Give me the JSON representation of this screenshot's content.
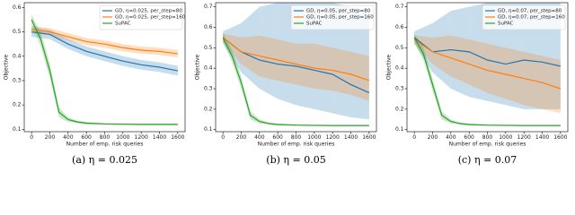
{
  "chart_data": [
    {
      "type": "line",
      "caption": "(a) η = 0.025",
      "xlabel": "Number of emp. risk queries",
      "ylabel": "Objective",
      "xlim": [
        -80,
        1680
      ],
      "xticks": [
        0,
        200,
        400,
        600,
        800,
        1000,
        1200,
        1400,
        1600
      ],
      "ylim": [
        0.09,
        0.62
      ],
      "yticks": [
        0.1,
        0.2,
        0.3,
        0.4,
        0.5,
        0.6
      ],
      "legend": "upper right",
      "series": [
        {
          "name": "GD, η=0.025, per_step=80",
          "color": "#1f77b4",
          "x": [
            0,
            200,
            400,
            600,
            800,
            1000,
            1200,
            1400,
            1600
          ],
          "values": [
            0.5,
            0.49,
            0.45,
            0.42,
            0.4,
            0.38,
            0.365,
            0.355,
            0.34
          ],
          "lower": [
            0.48,
            0.47,
            0.43,
            0.4,
            0.38,
            0.36,
            0.345,
            0.335,
            0.32
          ],
          "upper": [
            0.52,
            0.51,
            0.47,
            0.44,
            0.42,
            0.4,
            0.385,
            0.375,
            0.36
          ]
        },
        {
          "name": "GD, η=0.025, per_step=160",
          "color": "#ff7f0e",
          "x": [
            0,
            200,
            400,
            600,
            800,
            1000,
            1200,
            1400,
            1600
          ],
          "values": [
            0.51,
            0.5,
            0.48,
            0.46,
            0.45,
            0.435,
            0.425,
            0.42,
            0.41
          ],
          "lower": [
            0.495,
            0.485,
            0.465,
            0.445,
            0.435,
            0.42,
            0.41,
            0.405,
            0.395
          ],
          "upper": [
            0.525,
            0.515,
            0.495,
            0.475,
            0.465,
            0.45,
            0.44,
            0.435,
            0.425
          ]
        },
        {
          "name": "SuPAC",
          "color": "#2ca02c",
          "x": [
            0,
            100,
            200,
            300,
            400,
            500,
            600,
            800,
            1000,
            1200,
            1400,
            1600
          ],
          "values": [
            0.55,
            0.47,
            0.34,
            0.17,
            0.14,
            0.13,
            0.125,
            0.122,
            0.121,
            0.12,
            0.12,
            0.12
          ],
          "lower": [
            0.53,
            0.44,
            0.31,
            0.15,
            0.13,
            0.125,
            0.12,
            0.119,
            0.118,
            0.117,
            0.117,
            0.117
          ],
          "upper": [
            0.57,
            0.5,
            0.37,
            0.19,
            0.15,
            0.135,
            0.13,
            0.125,
            0.124,
            0.123,
            0.123,
            0.123
          ]
        }
      ]
    },
    {
      "type": "line",
      "caption": "(b) η = 0.05",
      "xlabel": "Number of emp. risk queries",
      "ylabel": "Objective",
      "xlim": [
        -80,
        1680
      ],
      "xticks": [
        0,
        200,
        400,
        600,
        800,
        1000,
        1200,
        1400,
        1600
      ],
      "ylim": [
        0.09,
        0.72
      ],
      "yticks": [
        0.1,
        0.2,
        0.3,
        0.4,
        0.5,
        0.6,
        0.7
      ],
      "legend": "upper right",
      "series": [
        {
          "name": "GD, η=0.05, per_step=80",
          "color": "#1f77b4",
          "x": [
            0,
            200,
            400,
            600,
            800,
            1000,
            1200,
            1400,
            1600
          ],
          "values": [
            0.55,
            0.48,
            0.44,
            0.42,
            0.41,
            0.39,
            0.37,
            0.32,
            0.28
          ],
          "lower": [
            0.52,
            0.38,
            0.3,
            0.25,
            0.22,
            0.2,
            0.18,
            0.16,
            0.15
          ],
          "upper": [
            0.58,
            0.62,
            0.7,
            0.72,
            0.72,
            0.72,
            0.72,
            0.7,
            0.68
          ]
        },
        {
          "name": "GD, η=0.05, per_step=160",
          "color": "#ff7f0e",
          "x": [
            0,
            200,
            400,
            600,
            800,
            1000,
            1200,
            1400,
            1600
          ],
          "values": [
            0.55,
            0.48,
            0.46,
            0.44,
            0.42,
            0.4,
            0.39,
            0.37,
            0.34
          ],
          "lower": [
            0.53,
            0.42,
            0.36,
            0.34,
            0.32,
            0.3,
            0.29,
            0.27,
            0.24
          ],
          "upper": [
            0.57,
            0.55,
            0.56,
            0.54,
            0.52,
            0.52,
            0.5,
            0.48,
            0.46
          ]
        },
        {
          "name": "SuPAC",
          "color": "#2ca02c",
          "x": [
            0,
            100,
            200,
            300,
            400,
            500,
            600,
            800,
            1000,
            1200,
            1400,
            1600
          ],
          "values": [
            0.55,
            0.46,
            0.33,
            0.17,
            0.14,
            0.13,
            0.125,
            0.122,
            0.121,
            0.12,
            0.12,
            0.12
          ],
          "lower": [
            0.53,
            0.43,
            0.3,
            0.15,
            0.13,
            0.125,
            0.12,
            0.119,
            0.118,
            0.117,
            0.117,
            0.117
          ],
          "upper": [
            0.57,
            0.49,
            0.36,
            0.19,
            0.15,
            0.135,
            0.13,
            0.125,
            0.124,
            0.123,
            0.123,
            0.123
          ]
        }
      ]
    },
    {
      "type": "line",
      "caption": "(c) η = 0.07",
      "xlabel": "Number of emp. risk queries",
      "ylabel": "Objective",
      "xlim": [
        -80,
        1680
      ],
      "xticks": [
        0,
        200,
        400,
        600,
        800,
        1000,
        1200,
        1400,
        1600
      ],
      "ylim": [
        0.09,
        0.72
      ],
      "yticks": [
        0.1,
        0.2,
        0.3,
        0.4,
        0.5,
        0.6,
        0.7
      ],
      "legend": "upper right",
      "series": [
        {
          "name": "GD, η=0.07, per_step=80",
          "color": "#1f77b4",
          "x": [
            0,
            200,
            400,
            600,
            800,
            1000,
            1200,
            1400,
            1600
          ],
          "values": [
            0.55,
            0.48,
            0.49,
            0.48,
            0.44,
            0.42,
            0.44,
            0.43,
            0.41
          ],
          "lower": [
            0.52,
            0.38,
            0.3,
            0.26,
            0.24,
            0.22,
            0.2,
            0.2,
            0.2
          ],
          "upper": [
            0.58,
            0.62,
            0.68,
            0.7,
            0.72,
            0.72,
            0.72,
            0.72,
            0.72
          ]
        },
        {
          "name": "GD, η=0.07, per_step=160",
          "color": "#ff7f0e",
          "x": [
            0,
            200,
            400,
            600,
            800,
            1000,
            1200,
            1400,
            1600
          ],
          "values": [
            0.54,
            0.48,
            0.45,
            0.42,
            0.39,
            0.37,
            0.35,
            0.33,
            0.3
          ],
          "lower": [
            0.52,
            0.42,
            0.36,
            0.32,
            0.28,
            0.25,
            0.22,
            0.2,
            0.18
          ],
          "upper": [
            0.56,
            0.55,
            0.56,
            0.54,
            0.52,
            0.5,
            0.48,
            0.46,
            0.44
          ]
        },
        {
          "name": "SuPAC",
          "color": "#2ca02c",
          "x": [
            0,
            100,
            200,
            300,
            400,
            500,
            600,
            800,
            1000,
            1200,
            1400,
            1600
          ],
          "values": [
            0.55,
            0.47,
            0.32,
            0.17,
            0.14,
            0.13,
            0.125,
            0.122,
            0.121,
            0.12,
            0.12,
            0.12
          ],
          "lower": [
            0.53,
            0.44,
            0.29,
            0.15,
            0.13,
            0.125,
            0.12,
            0.119,
            0.118,
            0.117,
            0.117,
            0.117
          ],
          "upper": [
            0.57,
            0.5,
            0.35,
            0.19,
            0.15,
            0.135,
            0.13,
            0.125,
            0.124,
            0.123,
            0.123,
            0.123
          ]
        }
      ]
    }
  ]
}
